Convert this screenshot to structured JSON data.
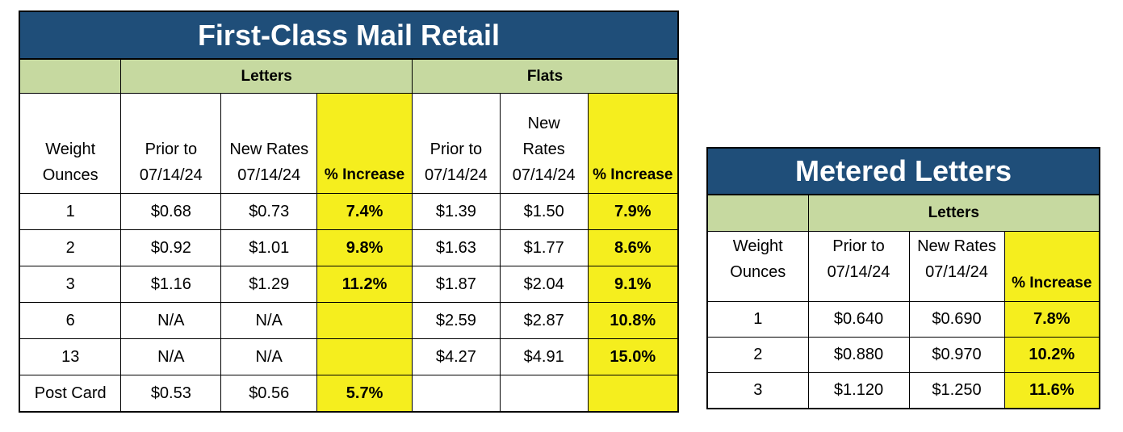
{
  "retail": {
    "title": "First-Class Mail Retail",
    "group_letters": "Letters",
    "group_flats": "Flats",
    "headers": {
      "weight_line1": "Weight",
      "weight_line2": "Ounces",
      "letters_prior_line1": "Prior to",
      "letters_prior_line2": "07/14/24",
      "letters_new_line1": "New Rates",
      "letters_new_line2": "07/14/24",
      "letters_pct": "% Increase",
      "flats_prior_line1": "Prior to",
      "flats_prior_line2": "07/14/24",
      "flats_new_line1": "New",
      "flats_new_line2": "Rates",
      "flats_new_line3": "07/14/24",
      "flats_pct": "% Increase"
    },
    "rows": [
      {
        "weight": "1",
        "l_prior": "$0.68",
        "l_new": "$0.73",
        "l_pct": "7.4%",
        "f_prior": "$1.39",
        "f_new": "$1.50",
        "f_pct": "7.9%"
      },
      {
        "weight": "2",
        "l_prior": "$0.92",
        "l_new": "$1.01",
        "l_pct": "9.8%",
        "f_prior": "$1.63",
        "f_new": "$1.77",
        "f_pct": "8.6%"
      },
      {
        "weight": "3",
        "l_prior": "$1.16",
        "l_new": "$1.29",
        "l_pct": "11.2%",
        "f_prior": "$1.87",
        "f_new": "$2.04",
        "f_pct": "9.1%"
      },
      {
        "weight": "6",
        "l_prior": "N/A",
        "l_new": "N/A",
        "l_pct": "",
        "f_prior": "$2.59",
        "f_new": "$2.87",
        "f_pct": "10.8%"
      },
      {
        "weight": "13",
        "l_prior": "N/A",
        "l_new": "N/A",
        "l_pct": "",
        "f_prior": "$4.27",
        "f_new": "$4.91",
        "f_pct": "15.0%"
      },
      {
        "weight": "Post Card",
        "l_prior": "$0.53",
        "l_new": "$0.56",
        "l_pct": "5.7%",
        "f_prior": "",
        "f_new": "",
        "f_pct": ""
      }
    ]
  },
  "metered": {
    "title": "Metered Letters",
    "group_letters": "Letters",
    "headers": {
      "weight_line1": "Weight",
      "weight_line2": "Ounces",
      "prior_line1": "Prior to",
      "prior_line2": "07/14/24",
      "new_line1": "New Rates",
      "new_line2": "07/14/24",
      "pct": "% Increase"
    },
    "rows": [
      {
        "weight": "1",
        "prior": "$0.640",
        "new": "$0.690",
        "pct": "7.8%"
      },
      {
        "weight": "2",
        "prior": "$0.880",
        "new": "$0.970",
        "pct": "10.2%"
      },
      {
        "weight": "3",
        "prior": "$1.120",
        "new": "$1.250",
        "pct": "11.6%"
      }
    ]
  },
  "colors": {
    "title_bg": "#1f4e79",
    "group_bg": "#c6d9a0",
    "highlight": "#f5ee1e"
  }
}
